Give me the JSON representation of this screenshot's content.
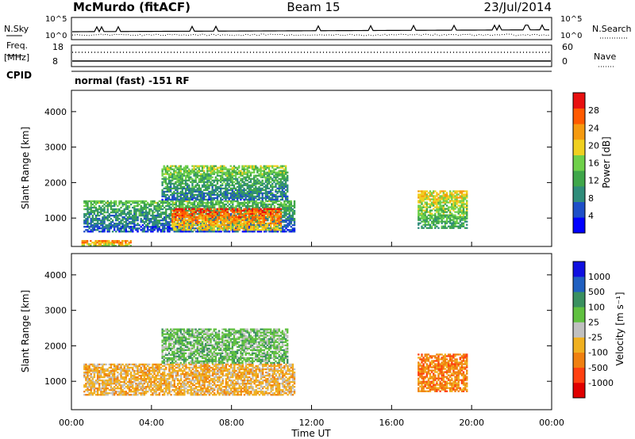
{
  "header": {
    "station": "McMurdo (fitACF)",
    "beam": "Beam 15",
    "date": "23/Jul/2014"
  },
  "noise_panel": {
    "left_label": "N.Sky",
    "right_label": "N.Search",
    "tick_top": "10^5",
    "tick_bottom": "10^0"
  },
  "freq_panel": {
    "left_label_1": "Freq.",
    "left_label_2": "[MHz]",
    "tick_top": "18",
    "tick_bottom": "8",
    "right_label": "Nave",
    "right_tick_top": "60",
    "right_tick_bottom": "0"
  },
  "cpid": {
    "label": "CPID",
    "value": "normal (fast) -151 RF"
  },
  "colors": {
    "power": [
      "#0000ff",
      "#1e4fc8",
      "#2f8c7a",
      "#3fa64a",
      "#6fd04a",
      "#f0d020",
      "#f59a10",
      "#ff5a00",
      "#e81010"
    ],
    "velocity": [
      "#1010e0",
      "#2060c0",
      "#3a9060",
      "#60c040",
      "#c0c0c0",
      "#f0b020",
      "#f08010",
      "#ff4010",
      "#e00000"
    ]
  },
  "chart_data": [
    {
      "type": "heatmap",
      "ylabel": "Slant Range [km]",
      "yticks": [
        "1000",
        "2000",
        "3000",
        "4000"
      ],
      "ylim": [
        200,
        4600
      ],
      "xlim": [
        "00:00",
        "24:00"
      ],
      "colorbar": {
        "label": "Power [dB]",
        "ticks": [
          "4",
          "8",
          "12",
          "16",
          "20",
          "24",
          "28"
        ],
        "range": [
          0,
          32
        ]
      },
      "regions": [
        {
          "t0": 0.6,
          "t1": 11.2,
          "r0": 600,
          "r1": 1500,
          "value": 10
        },
        {
          "t0": 5.0,
          "t1": 10.5,
          "r0": 650,
          "r1": 1300,
          "value": 24
        },
        {
          "t0": 4.5,
          "t1": 10.8,
          "r0": 1500,
          "r1": 2500,
          "value": 12
        },
        {
          "t0": 17.3,
          "t1": 19.8,
          "r0": 700,
          "r1": 1800,
          "value": 16
        },
        {
          "t0": 0.5,
          "t1": 3.0,
          "r0": 200,
          "r1": 400,
          "value": 22
        }
      ]
    },
    {
      "type": "heatmap",
      "ylabel": "Slant Range [km]",
      "yticks": [
        "1000",
        "2000",
        "3000",
        "4000"
      ],
      "ylim": [
        200,
        4600
      ],
      "xlim": [
        "00:00",
        "24:00"
      ],
      "xticks": [
        "00:00",
        "04:00",
        "08:00",
        "12:00",
        "16:00",
        "20:00",
        "00:00"
      ],
      "xlabel": "Time UT",
      "colorbar": {
        "label": "Velocity [m s⁻¹]",
        "ticks": [
          "1000",
          "500",
          "100",
          "25",
          "-25",
          "-100",
          "-500",
          "-1000"
        ]
      },
      "regions": [
        {
          "t0": 0.6,
          "t1": 11.2,
          "r0": 600,
          "r1": 1500,
          "value": -100
        },
        {
          "t0": 4.5,
          "t1": 10.8,
          "r0": 1500,
          "r1": 2500,
          "value": 100
        },
        {
          "t0": 17.3,
          "t1": 19.8,
          "r0": 700,
          "r1": 1800,
          "value": -500
        }
      ]
    }
  ]
}
